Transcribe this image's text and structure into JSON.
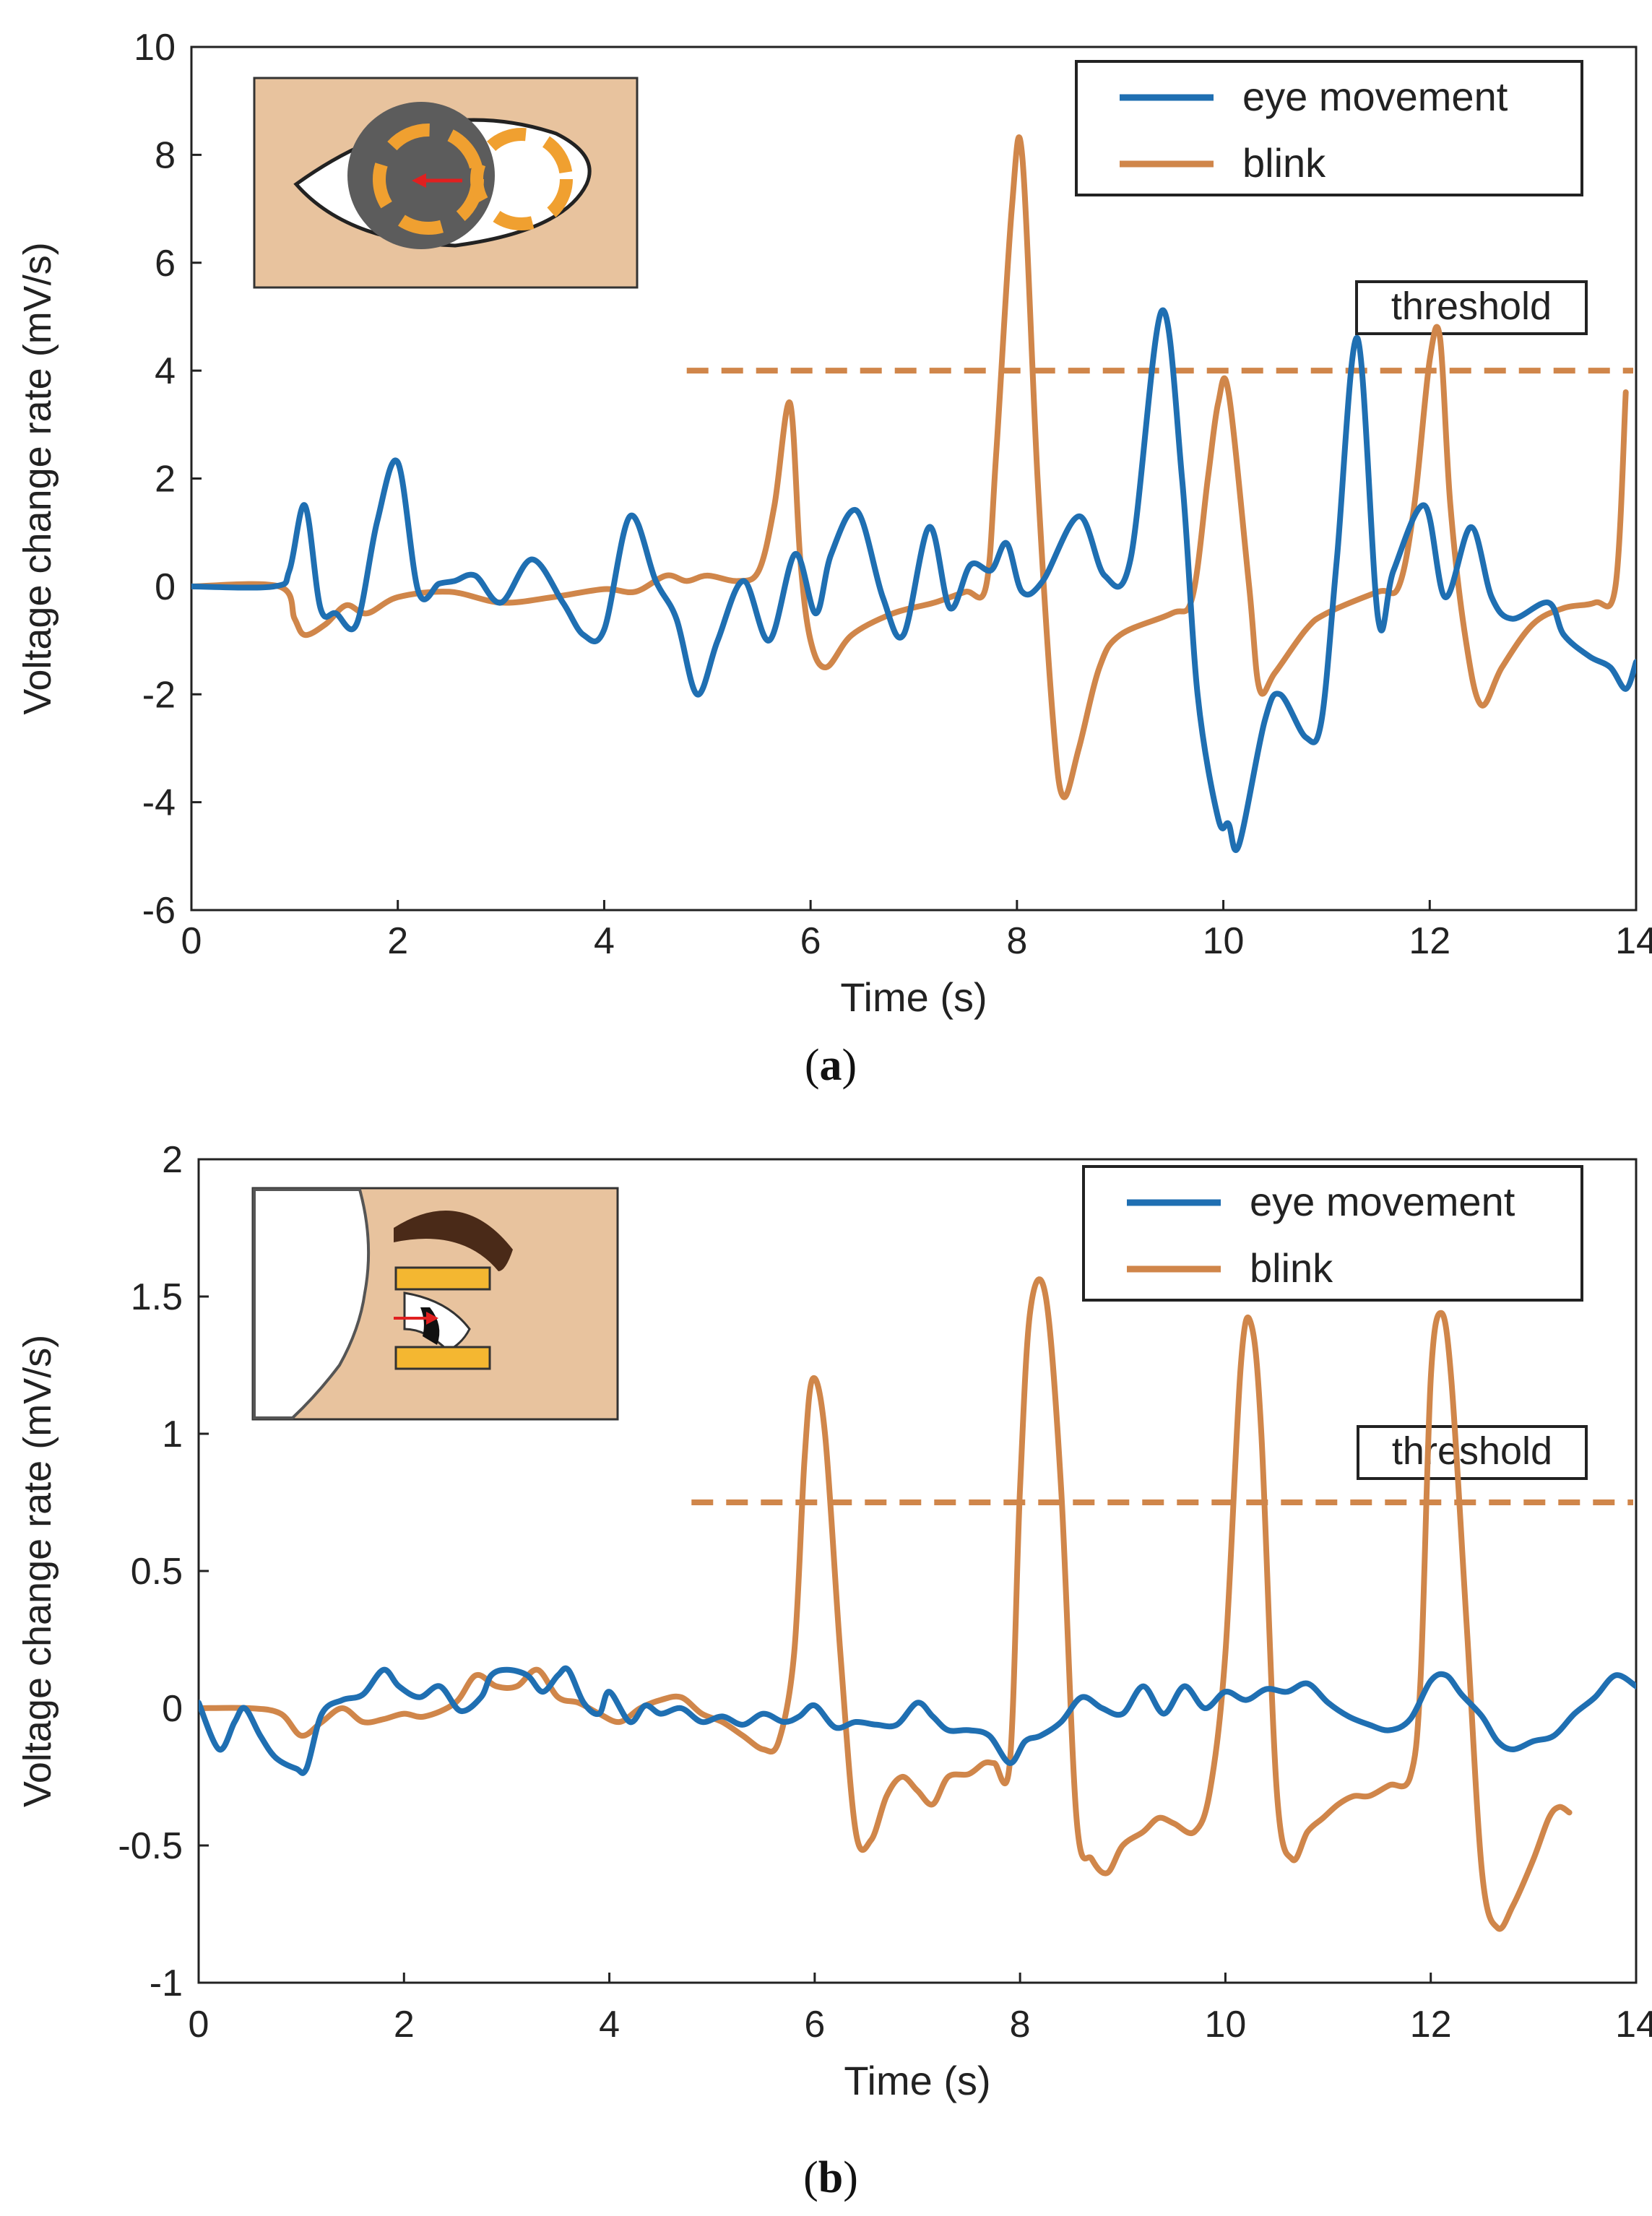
{
  "chart_data": [
    {
      "type": "line",
      "panel_label": "a",
      "xlabel": "Time (s)",
      "ylabel": "Voltage change rate (mV/s)",
      "xlim": [
        0,
        14
      ],
      "ylim": [
        -6,
        10
      ],
      "xticks": [
        0,
        2,
        4,
        6,
        8,
        10,
        12,
        14
      ],
      "yticks": [
        -6,
        -4,
        -2,
        0,
        2,
        4,
        6,
        8,
        10
      ],
      "xtick_labels": [
        "0",
        "2",
        "4",
        "6",
        "8",
        "10",
        "12",
        "14"
      ],
      "ytick_labels": [
        "-6",
        "-4",
        "-2",
        "0",
        "2",
        "4",
        "6",
        "8",
        "10"
      ],
      "legend": {
        "placement": "top-right",
        "entries": [
          "eye movement",
          "blink"
        ]
      },
      "threshold": {
        "label": "threshold",
        "value": 4,
        "x_start": 4.8,
        "x_end": 14
      },
      "inset": "front-view-eye",
      "colors": {
        "eye_movement": "#1f6fb2",
        "blink": "#d0864a",
        "inset_bg": "#e8c39e",
        "electrode": "#f0a030",
        "arrow": "#e02020"
      },
      "series": [
        {
          "name": "eye movement",
          "x": [
            0,
            0.8,
            0.95,
            1.1,
            1.25,
            1.4,
            1.6,
            1.8,
            2.0,
            2.2,
            2.4,
            2.55,
            2.75,
            3.0,
            3.3,
            3.6,
            3.8,
            4.0,
            4.25,
            4.5,
            4.7,
            4.9,
            5.1,
            5.35,
            5.6,
            5.85,
            6.05,
            6.2,
            6.45,
            6.7,
            6.9,
            7.15,
            7.35,
            7.55,
            7.75,
            7.9,
            8.05,
            8.25,
            8.6,
            8.85,
            9.1,
            9.4,
            9.6,
            9.75,
            9.95,
            10.05,
            10.15,
            10.4,
            10.55,
            10.8,
            10.95,
            11.1,
            11.3,
            11.5,
            11.65,
            11.95,
            12.15,
            12.4,
            12.6,
            12.8,
            13.15,
            13.3,
            13.55,
            13.75,
            13.9,
            14.0
          ],
          "y": [
            0,
            0,
            0.3,
            1.5,
            -0.4,
            -0.5,
            -0.7,
            1.2,
            2.3,
            -0.1,
            0.05,
            0.1,
            0.2,
            -0.3,
            0.5,
            -0.3,
            -0.9,
            -0.8,
            1.3,
            0.1,
            -0.6,
            -2.0,
            -1.0,
            0.1,
            -1.0,
            0.6,
            -0.5,
            0.6,
            1.4,
            -0.2,
            -0.9,
            1.1,
            -0.4,
            0.4,
            0.3,
            0.8,
            -0.1,
            0.1,
            1.3,
            0.2,
            0.5,
            5.1,
            2.0,
            -2.0,
            -4.3,
            -4.4,
            -4.8,
            -2.5,
            -2.0,
            -2.8,
            -2.5,
            0.5,
            4.6,
            -0.6,
            0.3,
            1.5,
            -0.2,
            1.1,
            -0.2,
            -0.6,
            -0.3,
            -0.9,
            -1.3,
            -1.5,
            -1.9,
            -1.4
          ]
        },
        {
          "name": "blink",
          "x": [
            0,
            0.85,
            1.0,
            1.1,
            1.3,
            1.5,
            1.7,
            2.0,
            2.5,
            3.0,
            3.5,
            4.0,
            4.3,
            4.6,
            4.8,
            5.0,
            5.3,
            5.5,
            5.65,
            5.8,
            5.9,
            6.0,
            6.15,
            6.4,
            6.8,
            7.2,
            7.5,
            7.7,
            7.8,
            7.95,
            8.05,
            8.2,
            8.35,
            8.45,
            8.6,
            8.8,
            9.0,
            9.5,
            9.7,
            9.85,
            9.95,
            10.05,
            10.25,
            10.35,
            10.5,
            10.8,
            11.0,
            11.5,
            11.7,
            11.85,
            12.0,
            12.1,
            12.2,
            12.35,
            12.5,
            12.7,
            13.0,
            13.3,
            13.6,
            13.8,
            13.9
          ],
          "y": [
            0,
            0,
            -0.6,
            -0.9,
            -0.7,
            -0.35,
            -0.5,
            -0.2,
            -0.1,
            -0.3,
            -0.2,
            -0.05,
            -0.1,
            0.2,
            0.1,
            0.2,
            0.1,
            0.3,
            1.5,
            3.4,
            0.5,
            -1.0,
            -1.5,
            -0.9,
            -0.5,
            -0.3,
            -0.1,
            0.0,
            2.5,
            7.0,
            8.0,
            2.0,
            -2.5,
            -3.9,
            -3.0,
            -1.5,
            -0.9,
            -0.5,
            -0.2,
            2.0,
            3.4,
            3.6,
            0.0,
            -1.9,
            -1.6,
            -0.8,
            -0.5,
            -0.1,
            0.0,
            1.5,
            4.2,
            4.6,
            1.5,
            -1.0,
            -2.2,
            -1.5,
            -0.7,
            -0.4,
            -0.3,
            0.0,
            3.6
          ]
        }
      ]
    },
    {
      "type": "line",
      "panel_label": "b",
      "xlabel": "Time (s)",
      "ylabel": "Voltage change rate (mV/s)",
      "xlim": [
        0,
        14
      ],
      "ylim": [
        -1,
        2
      ],
      "xticks": [
        0,
        2,
        4,
        6,
        8,
        10,
        12,
        14
      ],
      "yticks": [
        -1,
        -0.5,
        0,
        0.5,
        1,
        1.5,
        2
      ],
      "xtick_labels": [
        "0",
        "2",
        "4",
        "6",
        "8",
        "10",
        "12",
        "14"
      ],
      "ytick_labels": [
        "-1",
        "-0.5",
        "0",
        "0.5",
        "1",
        "1.5",
        "2"
      ],
      "legend": {
        "placement": "top-right",
        "entries": [
          "eye movement",
          "blink"
        ]
      },
      "threshold": {
        "label": "threshold",
        "value": 0.75,
        "x_start": 4.8,
        "x_end": 14
      },
      "inset": "side-view-eye",
      "colors": {
        "eye_movement": "#1f6fb2",
        "blink": "#d0864a",
        "inset_bg": "#e8c39e",
        "electrode": "#f4b731",
        "arrow": "#e02020",
        "brow": "#4a2a18"
      },
      "series": [
        {
          "name": "eye movement",
          "x": [
            0,
            0.2,
            0.35,
            0.45,
            0.6,
            0.75,
            0.95,
            1.05,
            1.2,
            1.4,
            1.6,
            1.8,
            1.95,
            2.15,
            2.35,
            2.55,
            2.75,
            2.85,
            3.0,
            3.2,
            3.35,
            3.5,
            3.6,
            3.75,
            3.9,
            4.0,
            4.2,
            4.35,
            4.5,
            4.7,
            4.9,
            5.1,
            5.3,
            5.5,
            5.7,
            5.85,
            6.0,
            6.2,
            6.4,
            6.6,
            6.8,
            7.0,
            7.15,
            7.3,
            7.5,
            7.7,
            7.9,
            8.05,
            8.2,
            8.4,
            8.6,
            8.8,
            9.0,
            9.2,
            9.4,
            9.6,
            9.8,
            10.0,
            10.2,
            10.4,
            10.6,
            10.8,
            11.0,
            11.2,
            11.4,
            11.6,
            11.8,
            12.0,
            12.15,
            12.3,
            12.5,
            12.65,
            12.8,
            13.0,
            13.2,
            13.4,
            13.6,
            13.8,
            14.0
          ],
          "y": [
            0.02,
            -0.15,
            -0.05,
            0.0,
            -0.1,
            -0.18,
            -0.22,
            -0.22,
            -0.02,
            0.03,
            0.05,
            0.14,
            0.08,
            0.04,
            0.08,
            -0.01,
            0.04,
            0.12,
            0.14,
            0.12,
            0.06,
            0.12,
            0.14,
            0.02,
            -0.02,
            0.06,
            -0.05,
            0.01,
            -0.02,
            0.0,
            -0.05,
            -0.03,
            -0.06,
            -0.02,
            -0.05,
            -0.03,
            0.01,
            -0.07,
            -0.05,
            -0.06,
            -0.06,
            0.02,
            -0.03,
            -0.08,
            -0.08,
            -0.1,
            -0.2,
            -0.12,
            -0.1,
            -0.05,
            0.04,
            0.0,
            -0.02,
            0.08,
            -0.02,
            0.08,
            0.0,
            0.06,
            0.03,
            0.07,
            0.06,
            0.09,
            0.02,
            -0.03,
            -0.06,
            -0.08,
            -0.04,
            0.1,
            0.12,
            0.05,
            -0.03,
            -0.12,
            -0.15,
            -0.12,
            -0.1,
            -0.02,
            0.04,
            0.12,
            0.08
          ]
        },
        {
          "name": "blink",
          "x": [
            0,
            0.5,
            0.8,
            1.0,
            1.2,
            1.4,
            1.6,
            1.8,
            2.0,
            2.2,
            2.5,
            2.7,
            2.9,
            3.1,
            3.3,
            3.5,
            3.7,
            3.9,
            4.1,
            4.3,
            4.5,
            4.7,
            4.9,
            5.1,
            5.3,
            5.5,
            5.65,
            5.8,
            5.9,
            5.98,
            6.1,
            6.25,
            6.4,
            6.55,
            6.7,
            6.85,
            7.0,
            7.15,
            7.3,
            7.5,
            7.65,
            7.75,
            7.9,
            8.0,
            8.1,
            8.25,
            8.4,
            8.55,
            8.7,
            8.85,
            9.0,
            9.2,
            9.35,
            9.5,
            9.7,
            9.85,
            10.0,
            10.15,
            10.25,
            10.35,
            10.5,
            10.65,
            10.8,
            10.95,
            11.1,
            11.25,
            11.4,
            11.6,
            11.8,
            11.9,
            12.0,
            12.1,
            12.2,
            12.35,
            12.5,
            12.65,
            12.8,
            13.0,
            13.15,
            13.25,
            13.35
          ],
          "y": [
            0.0,
            0.0,
            -0.02,
            -0.1,
            -0.05,
            0.0,
            -0.05,
            -0.04,
            -0.02,
            -0.03,
            0.02,
            0.12,
            0.08,
            0.08,
            0.14,
            0.04,
            0.02,
            -0.02,
            -0.05,
            0.0,
            0.03,
            0.04,
            -0.02,
            -0.05,
            -0.1,
            -0.15,
            -0.12,
            0.2,
            0.9,
            1.2,
            1.0,
            0.2,
            -0.45,
            -0.48,
            -0.32,
            -0.25,
            -0.3,
            -0.35,
            -0.25,
            -0.24,
            -0.2,
            -0.2,
            -0.2,
            0.8,
            1.45,
            1.5,
            0.8,
            -0.4,
            -0.55,
            -0.6,
            -0.5,
            -0.45,
            -0.4,
            -0.42,
            -0.45,
            -0.3,
            0.2,
            1.25,
            1.4,
            1.0,
            -0.3,
            -0.55,
            -0.45,
            -0.4,
            -0.35,
            -0.32,
            -0.32,
            -0.28,
            -0.25,
            0.1,
            1.2,
            1.44,
            1.2,
            0.3,
            -0.6,
            -0.8,
            -0.72,
            -0.55,
            -0.4,
            -0.36,
            -0.38
          ]
        }
      ]
    }
  ]
}
